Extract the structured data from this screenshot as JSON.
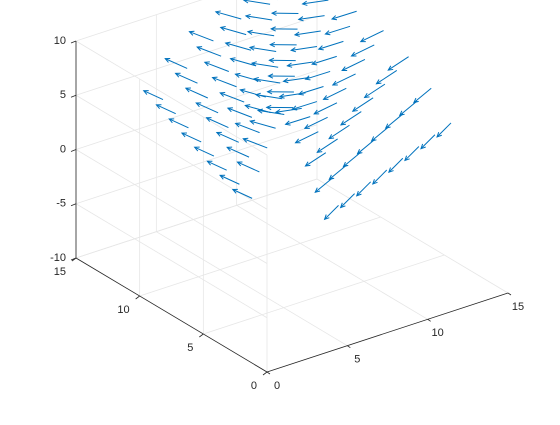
{
  "chart_data": {
    "type": "quiver3",
    "title": "",
    "xlabel": "",
    "ylabel": "",
    "zlabel": "",
    "xlim": [
      0,
      15
    ],
    "ylim": [
      0,
      15
    ],
    "zlim": [
      -10,
      10
    ],
    "x_ticks": [
      0,
      5,
      10,
      15
    ],
    "y_ticks": [
      0,
      5,
      10,
      15
    ],
    "z_ticks": [
      -10,
      -5,
      0,
      5,
      10
    ],
    "x_tick_labels": [
      "0",
      "5",
      "10",
      "15"
    ],
    "y_tick_labels": [
      "0",
      "5",
      "10",
      "15"
    ],
    "z_tick_labels": [
      "-10",
      "-5",
      "0",
      "5",
      "10"
    ],
    "grid": true,
    "box": false,
    "view": {
      "azimuth": -37.5,
      "elevation": 30
    },
    "series": [
      {
        "color": "#0072BD",
        "grid": {
          "u_steps": 8,
          "v_steps": 12
        },
        "surface": "x = (6 + 4*cos(v)) * ... helical trough: x,y on quarter-annulus, z = sin-like ripple",
        "description_vectors": "arrows tangent to surface pointing down the far edge, sideways toward +x along front"
      }
    ]
  }
}
